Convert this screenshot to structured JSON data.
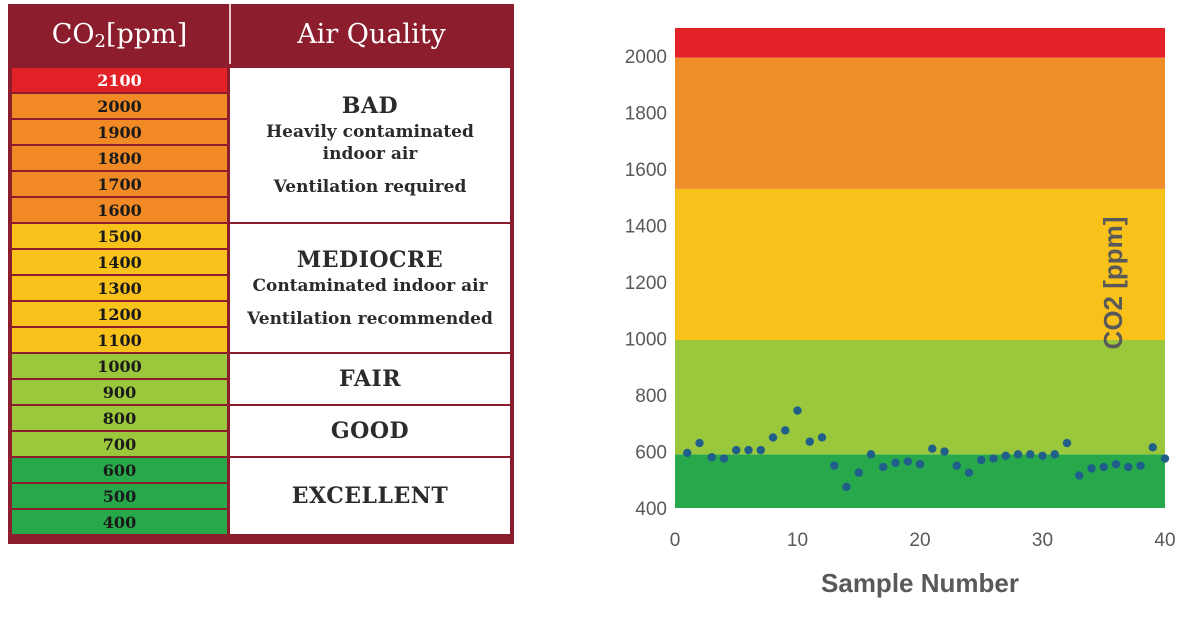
{
  "table": {
    "header_co2": "CO",
    "header_co2_sub": "2",
    "header_co2_unit": " [ppm]",
    "header_quality": "Air Quality",
    "ppm_rows": [
      {
        "value": "2100",
        "color": "#e32227"
      },
      {
        "value": "2000",
        "color": "#f18a24"
      },
      {
        "value": "1900",
        "color": "#f18a24"
      },
      {
        "value": "1800",
        "color": "#f18a24"
      },
      {
        "value": "1700",
        "color": "#f18a24"
      },
      {
        "value": "1600",
        "color": "#f18a24"
      },
      {
        "value": "1500",
        "color": "#f8c21b"
      },
      {
        "value": "1400",
        "color": "#f8c21b"
      },
      {
        "value": "1300",
        "color": "#f8c21b"
      },
      {
        "value": "1200",
        "color": "#f8c21b"
      },
      {
        "value": "1100",
        "color": "#f8c21b"
      },
      {
        "value": "1000",
        "color": "#9ac73c"
      },
      {
        "value": "900",
        "color": "#9ac73c"
      },
      {
        "value": "800",
        "color": "#9ac73c"
      },
      {
        "value": "700",
        "color": "#9ac73c"
      },
      {
        "value": "600",
        "color": "#27a84a"
      },
      {
        "value": "500",
        "color": "#27a84a"
      },
      {
        "value": "400",
        "color": "#27a84a"
      }
    ],
    "categories": {
      "bad": {
        "title": "BAD",
        "desc1": "Heavily contaminated",
        "desc2": "indoor air",
        "action": "Ventilation required"
      },
      "mediocre": {
        "title": "MEDIOCRE",
        "desc1": "Contaminated indoor air",
        "action": "Ventilation recommended"
      },
      "fair": {
        "title": "FAIR"
      },
      "good": {
        "title": "GOOD"
      },
      "excellent": {
        "title": "EXCELLENT"
      }
    }
  },
  "chart_data": {
    "type": "scatter",
    "title": "",
    "xlabel": "Sample Number",
    "ylabel": "CO2 [ppm]",
    "xlim": [
      0,
      40
    ],
    "ylim": [
      400,
      2100
    ],
    "xticks": [
      0,
      10,
      20,
      30,
      40
    ],
    "yticks": [
      400,
      600,
      800,
      1000,
      1200,
      1400,
      1600,
      1800,
      2000
    ],
    "bands": [
      {
        "from": 400,
        "to": 590,
        "color": "#27a84a"
      },
      {
        "from": 590,
        "to": 995,
        "color": "#9ac73c"
      },
      {
        "from": 995,
        "to": 1530,
        "color": "#f8c21b"
      },
      {
        "from": 1530,
        "to": 1995,
        "color": "#f08f2a"
      },
      {
        "from": 1995,
        "to": 2100,
        "color": "#e32227"
      }
    ],
    "point_color": "#1f5f8a",
    "x": [
      1,
      2,
      3,
      4,
      5,
      6,
      7,
      8,
      9,
      10,
      11,
      12,
      13,
      14,
      15,
      16,
      17,
      18,
      19,
      20,
      21,
      22,
      23,
      24,
      25,
      26,
      27,
      28,
      29,
      30,
      31,
      32,
      33,
      34,
      35,
      36,
      37,
      38,
      39,
      40
    ],
    "y": [
      595,
      630,
      580,
      575,
      605,
      605,
      605,
      650,
      675,
      745,
      635,
      650,
      550,
      475,
      525,
      590,
      545,
      560,
      565,
      555,
      610,
      600,
      550,
      525,
      570,
      575,
      585,
      590,
      590,
      585,
      590,
      630,
      515,
      540,
      545,
      555,
      545,
      550,
      615,
      575
    ]
  }
}
